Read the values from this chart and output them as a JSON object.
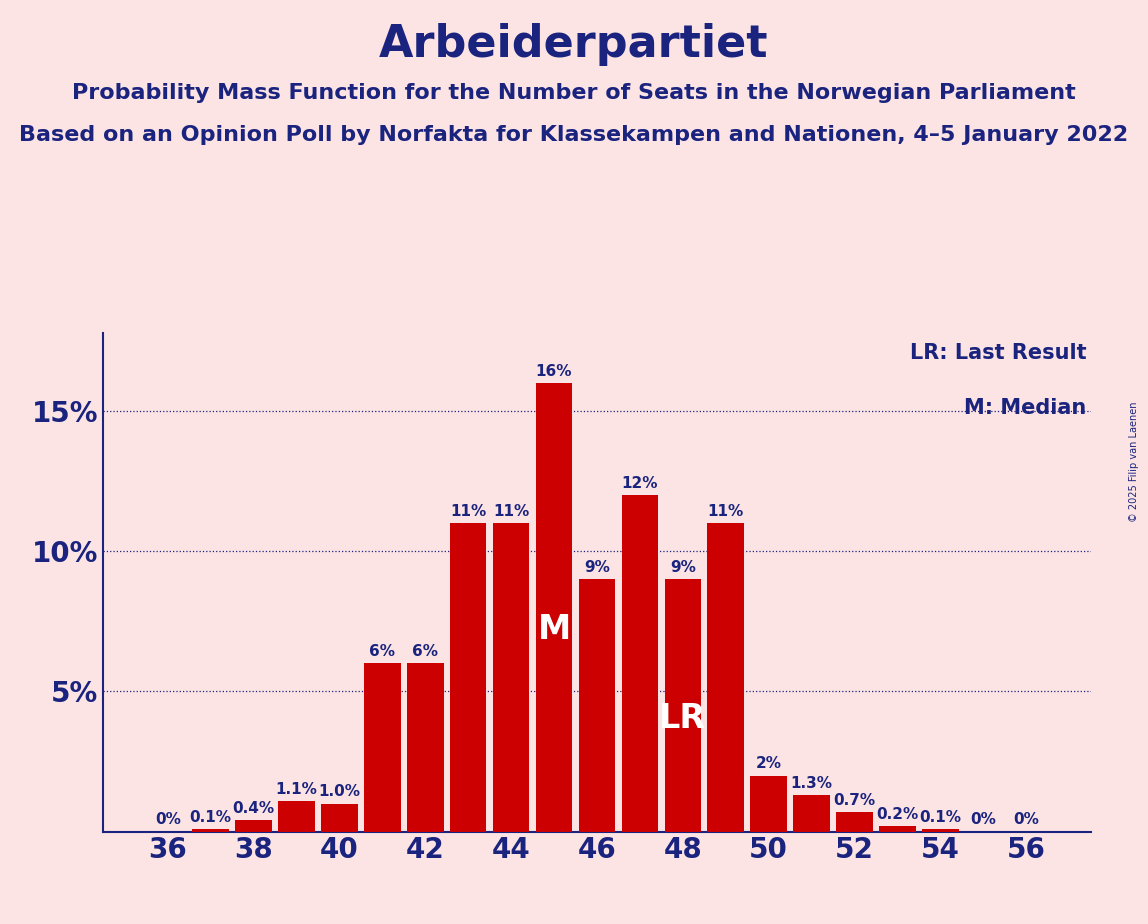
{
  "title": "Arbeiderpartiet",
  "subtitle1": "Probability Mass Function for the Number of Seats in the Norwegian Parliament",
  "subtitle2": "Based on an Opinion Poll by Norfakta for Klassekampen and Nationen, 4–5 January 2022",
  "copyright": "© 2025 Filip van Laenen",
  "background_color": "#fce4e4",
  "bar_color": "#cc0000",
  "title_color": "#1a237e",
  "axis_color": "#1a237e",
  "seats": [
    36,
    37,
    38,
    39,
    40,
    41,
    42,
    43,
    44,
    45,
    46,
    47,
    48,
    49,
    50,
    51,
    52,
    53,
    54,
    55,
    56
  ],
  "probabilities": [
    0.0,
    0.1,
    0.4,
    1.1,
    1.0,
    6.0,
    6.0,
    11.0,
    11.0,
    16.0,
    9.0,
    12.0,
    9.0,
    11.0,
    2.0,
    1.3,
    0.7,
    0.2,
    0.1,
    0.0,
    0.0
  ],
  "labels": [
    "0%",
    "0.1%",
    "0.4%",
    "1.1%",
    "1.0%",
    "6%",
    "6%",
    "11%",
    "11%",
    "16%",
    "9%",
    "12%",
    "9%",
    "11%",
    "2%",
    "1.3%",
    "0.7%",
    "0.2%",
    "0.1%",
    "0%",
    "0%"
  ],
  "median_seat": 45,
  "lr_seat": 48,
  "xtick_seats": [
    36,
    38,
    40,
    42,
    44,
    46,
    48,
    50,
    52,
    54,
    56
  ],
  "ytick_labels": [
    "",
    "5%",
    "10%",
    "15%"
  ],
  "ytick_vals": [
    0,
    5,
    10,
    15
  ],
  "legend_lr": "LR: Last Result",
  "legend_m": "M: Median",
  "grid_color": "#1a237e",
  "label_color_dark": "#1a237e",
  "label_color_white": "#ffffff",
  "xlim": [
    34.5,
    57.5
  ],
  "ylim": [
    0,
    17.8
  ],
  "title_fontsize": 32,
  "subtitle_fontsize": 16,
  "tick_fontsize": 20,
  "label_fontsize": 11,
  "legend_fontsize": 15,
  "median_label_fontsize": 24,
  "lr_label_fontsize": 24
}
